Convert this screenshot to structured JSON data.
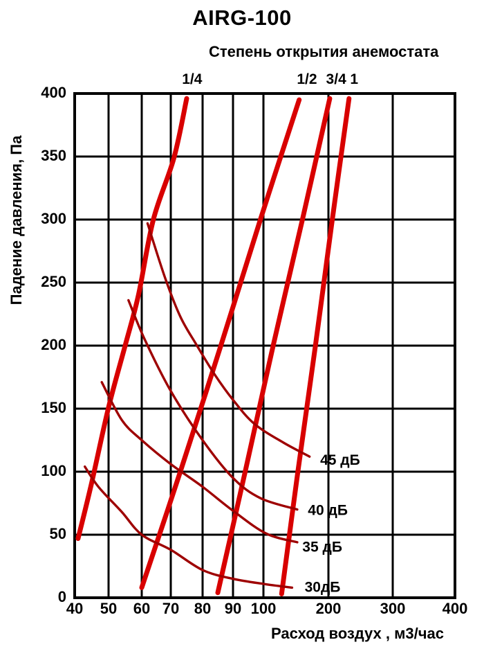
{
  "chart_data": {
    "type": "line",
    "title": "AIRG-100",
    "subtitle": "Степень открытия анемостата",
    "xlabel": "Расход воздух , м3/час",
    "ylabel": "Падение давления, Па",
    "x_ticks": [
      40,
      50,
      60,
      70,
      80,
      90,
      100,
      200,
      300,
      400
    ],
    "y_ticks": [
      0,
      50,
      100,
      150,
      200,
      250,
      300,
      350,
      400
    ],
    "xlim": [
      40,
      400
    ],
    "ylim": [
      0,
      400
    ],
    "grid": true,
    "x_scale_note": "pseudo-log: ticks 40-100 step 10 and 100-400 step 100 are evenly spaced",
    "colors": {
      "opening_line": "#d80000",
      "noise_line": "#9e0000",
      "grid": "#000000"
    },
    "series": [
      {
        "name": "1/4",
        "role": "opening-degree",
        "points": [
          [
            75,
            396
          ],
          [
            71,
            349
          ],
          [
            64,
            300
          ],
          [
            59,
            240
          ],
          [
            55,
            200
          ],
          [
            50,
            151
          ],
          [
            45,
            91
          ],
          [
            41,
            47
          ]
        ]
      },
      {
        "name": "1/2",
        "role": "opening-degree",
        "points": [
          [
            155,
            395
          ],
          [
            99,
            300
          ],
          [
            86,
            200
          ],
          [
            73,
            100
          ],
          [
            60,
            8
          ]
        ]
      },
      {
        "name": "3/4",
        "role": "opening-degree",
        "points": [
          [
            202,
            396
          ],
          [
            160,
            300
          ],
          [
            115,
            200
          ],
          [
            94,
            100
          ],
          [
            85,
            4
          ]
        ]
      },
      {
        "name": "1",
        "role": "opening-degree",
        "points": [
          [
            232,
            396
          ],
          [
            206,
            300
          ],
          [
            180,
            200
          ],
          [
            153,
            100
          ],
          [
            128,
            3
          ]
        ]
      },
      {
        "name": "45 дБ",
        "role": "noise-level",
        "points": [
          [
            62,
            297
          ],
          [
            68,
            254
          ],
          [
            73,
            223
          ],
          [
            78,
            201
          ],
          [
            84,
            177
          ],
          [
            90,
            157
          ],
          [
            97,
            138
          ],
          [
            131,
            123
          ],
          [
            171,
            112
          ]
        ]
      },
      {
        "name": "40 дБ",
        "role": "noise-level",
        "points": [
          [
            56,
            236
          ],
          [
            61,
            205
          ],
          [
            70,
            164
          ],
          [
            80,
            125
          ],
          [
            90,
            95
          ],
          [
            99,
            79
          ],
          [
            152,
            70
          ]
        ]
      },
      {
        "name": "35 дБ",
        "role": "noise-level",
        "points": [
          [
            48,
            171
          ],
          [
            54,
            141
          ],
          [
            60,
            125
          ],
          [
            70,
            106
          ],
          [
            80,
            88
          ],
          [
            90,
            69
          ],
          [
            104,
            51
          ],
          [
            152,
            44
          ]
        ]
      },
      {
        "name": "30дБ",
        "role": "noise-level",
        "points": [
          [
            43,
            104
          ],
          [
            47,
            88
          ],
          [
            54,
            68
          ],
          [
            60,
            50
          ],
          [
            70,
            38
          ],
          [
            80,
            22
          ],
          [
            90,
            15
          ],
          [
            100,
            11
          ],
          [
            144,
            8
          ]
        ]
      }
    ],
    "annotations": {
      "opening_labels": [
        {
          "text": "1/4",
          "x": 76.7
        },
        {
          "text": "1/2",
          "x": 167
        },
        {
          "text": "3/4",
          "x": 212
        },
        {
          "text": "1",
          "x": 240
        }
      ],
      "noise_labels": [
        {
          "text": "45 дБ",
          "x": 181,
          "y": 110
        },
        {
          "text": "40 дБ",
          "x": 162,
          "y": 70
        },
        {
          "text": "35 дБ",
          "x": 153.5,
          "y": 41
        },
        {
          "text": "30дБ",
          "x": 157,
          "y": 9
        }
      ],
      "legend_position": "labels at right end of noise curves; opening labels above top axis"
    }
  }
}
